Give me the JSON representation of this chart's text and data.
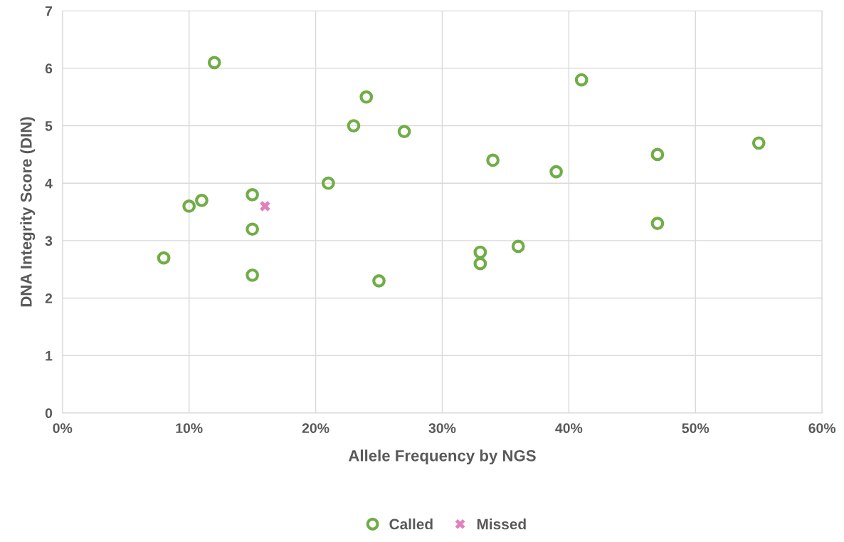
{
  "chart_data": {
    "type": "scatter",
    "xlabel": "Allele Frequency by NGS",
    "ylabel": "DNA Integrity Score (DIN)",
    "series": [
      {
        "name": "Called",
        "color": "#70ad47",
        "marker": "circle",
        "x": [
          8,
          10,
          11,
          12,
          15,
          15,
          15,
          21,
          23,
          24,
          25,
          27,
          33,
          33,
          34,
          36,
          39,
          41,
          47,
          47,
          55
        ],
        "values": [
          2.7,
          3.6,
          3.7,
          6.1,
          3.8,
          3.2,
          2.4,
          4.0,
          5.0,
          5.5,
          2.3,
          4.9,
          2.8,
          2.6,
          4.4,
          2.9,
          4.2,
          5.8,
          4.5,
          3.3,
          4.7
        ]
      },
      {
        "name": "Missed",
        "color": "#e47fbd",
        "marker": "cross",
        "x": [
          16
        ],
        "values": [
          3.6
        ]
      }
    ],
    "xlim": [
      0,
      60
    ],
    "xticks": [
      {
        "value": 0,
        "label": "0%"
      },
      {
        "value": 10,
        "label": "10%"
      },
      {
        "value": 20,
        "label": "20%"
      },
      {
        "value": 30,
        "label": "30%"
      },
      {
        "value": 40,
        "label": "40%"
      },
      {
        "value": 50,
        "label": "50%"
      },
      {
        "value": 60,
        "label": "60%"
      }
    ],
    "ylim": [
      0,
      7
    ],
    "yticks": [
      0,
      1,
      2,
      3,
      4,
      5,
      6,
      7
    ],
    "grid": true,
    "legend": "bottom"
  }
}
